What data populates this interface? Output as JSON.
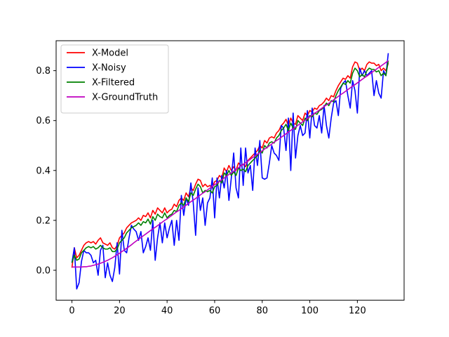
{
  "chart_data": {
    "type": "line",
    "title": "",
    "xlabel": "",
    "ylabel": "",
    "xlim": [
      -6.65,
      139.65
    ],
    "ylim": [
      -0.12,
      0.92
    ],
    "x_ticks": [
      0,
      20,
      40,
      60,
      80,
      100,
      120
    ],
    "y_ticks": [
      0.0,
      0.2,
      0.4,
      0.6,
      0.8
    ],
    "x_tick_labels": [
      "0",
      "20",
      "40",
      "60",
      "80",
      "100",
      "120"
    ],
    "y_tick_labels": [
      "0.0",
      "0.2",
      "0.4",
      "0.6",
      "0.8"
    ],
    "grid": false,
    "legend_position": "top-left",
    "x": [
      0,
      1,
      2,
      3,
      4,
      5,
      6,
      7,
      8,
      9,
      10,
      11,
      12,
      13,
      14,
      15,
      16,
      17,
      18,
      19,
      20,
      21,
      22,
      23,
      24,
      25,
      26,
      27,
      28,
      29,
      30,
      31,
      32,
      33,
      34,
      35,
      36,
      37,
      38,
      39,
      40,
      41,
      42,
      43,
      44,
      45,
      46,
      47,
      48,
      49,
      50,
      51,
      52,
      53,
      54,
      55,
      56,
      57,
      58,
      59,
      60,
      61,
      62,
      63,
      64,
      65,
      66,
      67,
      68,
      69,
      70,
      71,
      72,
      73,
      74,
      75,
      76,
      77,
      78,
      79,
      80,
      81,
      82,
      83,
      84,
      85,
      86,
      87,
      88,
      89,
      90,
      91,
      92,
      93,
      94,
      95,
      96,
      97,
      98,
      99,
      100,
      101,
      102,
      103,
      104,
      105,
      106,
      107,
      108,
      109,
      110,
      111,
      112,
      113,
      114,
      115,
      116,
      117,
      118,
      119,
      120,
      121,
      122,
      123,
      124,
      125,
      126,
      127,
      128,
      129,
      130,
      131,
      132,
      133
    ],
    "series": [
      {
        "name": "X-Model",
        "color": "#ff0000",
        "values": [
          0.01,
          0.09,
          0.05,
          0.06,
          0.08,
          0.1,
          0.11,
          0.115,
          0.11,
          0.115,
          0.105,
          0.12,
          0.13,
          0.11,
          0.105,
          0.1,
          0.11,
          0.09,
          0.085,
          0.1,
          0.13,
          0.14,
          0.15,
          0.17,
          0.18,
          0.19,
          0.195,
          0.2,
          0.21,
          0.2,
          0.22,
          0.215,
          0.23,
          0.21,
          0.24,
          0.225,
          0.25,
          0.24,
          0.23,
          0.25,
          0.23,
          0.24,
          0.245,
          0.265,
          0.255,
          0.28,
          0.29,
          0.28,
          0.31,
          0.295,
          0.33,
          0.32,
          0.345,
          0.365,
          0.36,
          0.335,
          0.345,
          0.335,
          0.34,
          0.33,
          0.355,
          0.36,
          0.38,
          0.37,
          0.41,
          0.395,
          0.42,
          0.4,
          0.415,
          0.4,
          0.43,
          0.42,
          0.425,
          0.415,
          0.44,
          0.45,
          0.46,
          0.47,
          0.48,
          0.5,
          0.49,
          0.52,
          0.51,
          0.53,
          0.535,
          0.53,
          0.55,
          0.56,
          0.58,
          0.59,
          0.605,
          0.58,
          0.61,
          0.59,
          0.585,
          0.62,
          0.61,
          0.6,
          0.63,
          0.62,
          0.64,
          0.635,
          0.65,
          0.645,
          0.66,
          0.665,
          0.675,
          0.69,
          0.68,
          0.7,
          0.695,
          0.72,
          0.74,
          0.755,
          0.77,
          0.765,
          0.78,
          0.77,
          0.815,
          0.835,
          0.83,
          0.8,
          0.81,
          0.8,
          0.825,
          0.835,
          0.83,
          0.83,
          0.82,
          0.825,
          0.8,
          0.81,
          0.8,
          0.83
        ]
      },
      {
        "name": "X-Noisy",
        "color": "#0000ff",
        "values": [
          0.03,
          0.09,
          -0.075,
          -0.05,
          0.035,
          0.08,
          0.07,
          0.07,
          0.06,
          0.03,
          0.04,
          -0.02,
          0.08,
          0.1,
          -0.03,
          0.03,
          -0.02,
          -0.045,
          0.01,
          0.11,
          -0.015,
          0.16,
          0.08,
          0.07,
          0.13,
          0.18,
          0.165,
          0.155,
          0.12,
          0.155,
          0.07,
          0.095,
          0.13,
          0.08,
          0.2,
          0.04,
          0.13,
          0.19,
          0.11,
          0.19,
          0.13,
          0.17,
          0.2,
          0.1,
          0.2,
          0.12,
          0.3,
          0.22,
          0.29,
          0.26,
          0.35,
          0.27,
          0.14,
          0.33,
          0.24,
          0.29,
          0.18,
          0.27,
          0.29,
          0.37,
          0.21,
          0.37,
          0.29,
          0.38,
          0.33,
          0.4,
          0.28,
          0.37,
          0.47,
          0.33,
          0.29,
          0.49,
          0.34,
          0.49,
          0.39,
          0.42,
          0.32,
          0.49,
          0.42,
          0.52,
          0.37,
          0.365,
          0.37,
          0.43,
          0.5,
          0.47,
          0.46,
          0.44,
          0.58,
          0.57,
          0.48,
          0.61,
          0.4,
          0.63,
          0.45,
          0.54,
          0.58,
          0.54,
          0.55,
          0.64,
          0.53,
          0.65,
          0.58,
          0.57,
          0.62,
          0.55,
          0.66,
          0.58,
          0.53,
          0.61,
          0.67,
          0.68,
          0.62,
          0.73,
          0.75,
          0.76,
          0.7,
          0.65,
          0.76,
          0.72,
          0.63,
          0.81,
          0.78,
          0.8,
          0.78,
          0.79,
          0.8,
          0.7,
          0.76,
          0.71,
          0.69,
          0.8,
          0.78,
          0.87
        ]
      },
      {
        "name": "X-Filtered",
        "color": "#008000",
        "values": [
          0.03,
          0.06,
          0.04,
          0.045,
          0.07,
          0.08,
          0.09,
          0.095,
          0.09,
          0.095,
          0.085,
          0.09,
          0.1,
          0.09,
          0.085,
          0.085,
          0.09,
          0.075,
          0.075,
          0.085,
          0.11,
          0.12,
          0.13,
          0.15,
          0.16,
          0.17,
          0.175,
          0.18,
          0.19,
          0.18,
          0.195,
          0.19,
          0.205,
          0.185,
          0.215,
          0.2,
          0.225,
          0.215,
          0.21,
          0.23,
          0.21,
          0.22,
          0.225,
          0.24,
          0.235,
          0.26,
          0.27,
          0.26,
          0.29,
          0.275,
          0.31,
          0.3,
          0.325,
          0.345,
          0.335,
          0.31,
          0.32,
          0.315,
          0.32,
          0.31,
          0.335,
          0.34,
          0.36,
          0.35,
          0.39,
          0.38,
          0.4,
          0.38,
          0.395,
          0.38,
          0.41,
          0.4,
          0.405,
          0.395,
          0.42,
          0.43,
          0.44,
          0.45,
          0.46,
          0.48,
          0.47,
          0.5,
          0.49,
          0.51,
          0.515,
          0.51,
          0.53,
          0.54,
          0.56,
          0.57,
          0.585,
          0.56,
          0.59,
          0.57,
          0.565,
          0.6,
          0.59,
          0.58,
          0.61,
          0.6,
          0.62,
          0.615,
          0.63,
          0.625,
          0.64,
          0.645,
          0.655,
          0.67,
          0.66,
          0.68,
          0.675,
          0.7,
          0.72,
          0.735,
          0.75,
          0.745,
          0.76,
          0.75,
          0.79,
          0.81,
          0.8,
          0.775,
          0.785,
          0.775,
          0.8,
          0.81,
          0.805,
          0.805,
          0.795,
          0.8,
          0.78,
          0.79,
          0.78,
          0.84
        ]
      },
      {
        "name": "X-GroundTruth",
        "color": "#bf00bf",
        "values": [
          0.013,
          0.013,
          0.013,
          0.013,
          0.013,
          0.014,
          0.014,
          0.016,
          0.017,
          0.02,
          0.022,
          0.025,
          0.028,
          0.032,
          0.036,
          0.04,
          0.045,
          0.05,
          0.056,
          0.062,
          0.068,
          0.075,
          0.081,
          0.088,
          0.095,
          0.102,
          0.11,
          0.117,
          0.124,
          0.131,
          0.138,
          0.145,
          0.152,
          0.159,
          0.166,
          0.172,
          0.179,
          0.186,
          0.193,
          0.2,
          0.206,
          0.213,
          0.22,
          0.227,
          0.234,
          0.24,
          0.247,
          0.254,
          0.261,
          0.268,
          0.275,
          0.281,
          0.288,
          0.295,
          0.302,
          0.309,
          0.315,
          0.322,
          0.329,
          0.336,
          0.343,
          0.349,
          0.356,
          0.363,
          0.37,
          0.377,
          0.384,
          0.39,
          0.397,
          0.404,
          0.411,
          0.418,
          0.424,
          0.431,
          0.438,
          0.445,
          0.452,
          0.458,
          0.465,
          0.472,
          0.479,
          0.486,
          0.492,
          0.499,
          0.506,
          0.513,
          0.52,
          0.526,
          0.533,
          0.54,
          0.547,
          0.554,
          0.561,
          0.567,
          0.574,
          0.581,
          0.588,
          0.595,
          0.601,
          0.608,
          0.615,
          0.622,
          0.629,
          0.635,
          0.642,
          0.649,
          0.656,
          0.663,
          0.669,
          0.676,
          0.683,
          0.69,
          0.697,
          0.704,
          0.71,
          0.717,
          0.724,
          0.731,
          0.738,
          0.744,
          0.751,
          0.758,
          0.765,
          0.772,
          0.778,
          0.785,
          0.792,
          0.799,
          0.806,
          0.813,
          0.819,
          0.826,
          0.833,
          0.84
        ]
      }
    ]
  }
}
